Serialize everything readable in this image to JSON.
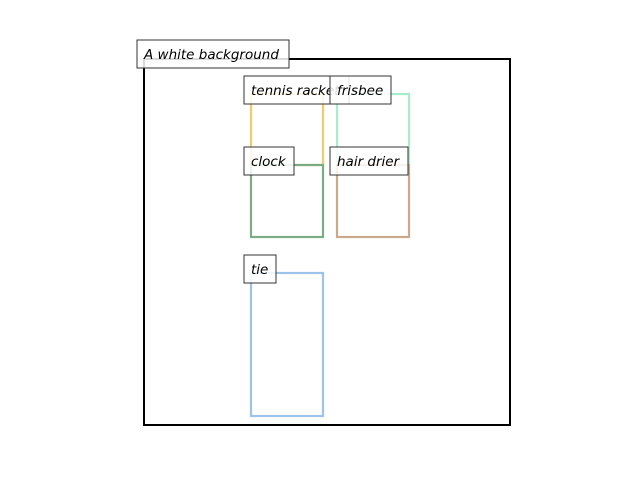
{
  "caption": "A white background",
  "objects": [
    {
      "id": "tennis-racket",
      "label": "tennis racket",
      "color": "#f5c96e"
    },
    {
      "id": "frisbee",
      "label": "frisbee",
      "color": "#a6eecb"
    },
    {
      "id": "clock",
      "label": "clock",
      "color": "#7aad84"
    },
    {
      "id": "hair-drier",
      "label": "hair drier",
      "color": "#c9a88b"
    },
    {
      "id": "tie",
      "label": "tie",
      "color": "#9cc3ec"
    }
  ]
}
